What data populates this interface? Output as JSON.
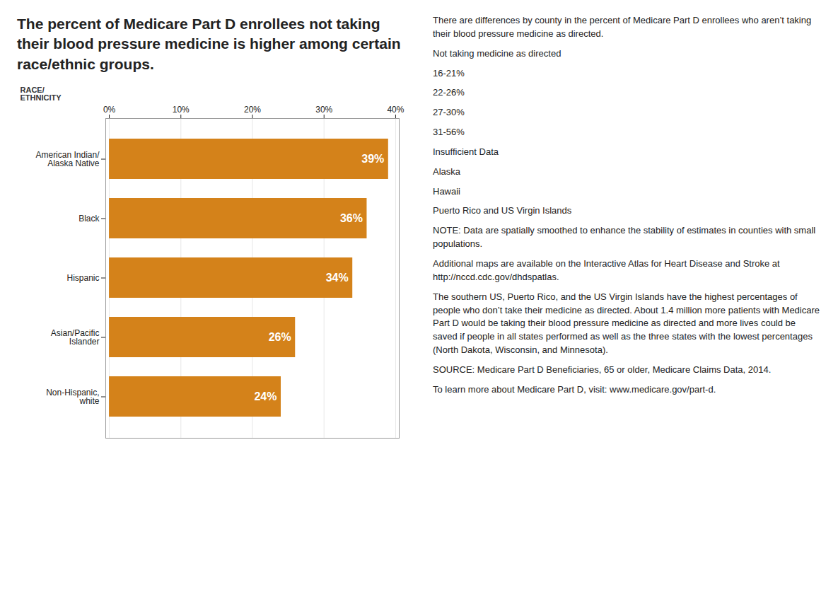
{
  "chart_data": {
    "type": "bar",
    "orientation": "horizontal",
    "title": "The percent of Medicare Part D enrollees not taking their blood pressure medicine is higher among certain race/ethnic groups.",
    "categories": [
      "American Indian/\nAlaska Native",
      "Black",
      "Hispanic",
      "Asian/Pacific\nIslander",
      "Non-Hispanic,\nwhite"
    ],
    "values": [
      39,
      36,
      34,
      26,
      24
    ],
    "value_labels": [
      "39%",
      "36%",
      "34%",
      "26%",
      "24%"
    ],
    "data_labels": true,
    "color": "#d4821a",
    "ylabel": "RACE/\nETHNICITY",
    "xlim": [
      -0.5,
      40.5
    ],
    "xticks": [
      {
        "value": 0,
        "label": "0%"
      },
      {
        "value": 10,
        "label": "10%"
      },
      {
        "value": 20,
        "label": "20%"
      },
      {
        "value": 30,
        "label": "30%"
      },
      {
        "value": 40,
        "label": "40%"
      }
    ],
    "grid": true,
    "annotations": [
      "There are differences by county in the percent of Medicare Part D enrollees who aren’t taking their blood pressure medicine as directed.",
      "Not taking medicine as directed",
      "16-21%",
      "22-26%",
      "27-30%",
      "31-56%",
      "Insufficient Data",
      "Alaska",
      "Hawaii",
      "Puerto Rico and US Virgin Islands",
      "NOTE: Data are spatially smoothed to enhance the stability of estimates in counties with small populations.",
      "Additional maps are available on the Interactive Atlas for Heart Disease and Stroke at http://nccd.cdc.gov/dhdspatlas.",
      "The southern US, Puerto Rico, and the US Virgin Islands have the highest percentages of people who don’t take their medicine as directed. About 1.4 million more patients with Medicare Part D would be taking their blood pressure medicine as directed and more lives could be saved if people in all states performed as well as the three states with the lowest percentages (North Dakota, Wisconsin, and Minnesota).",
      "SOURCE: Medicare Part D Beneficiaries, 65 or older, Medicare Claims Data, 2014.",
      "To learn more about Medicare Part D, visit: www.medicare.gov/part-d."
    ]
  }
}
